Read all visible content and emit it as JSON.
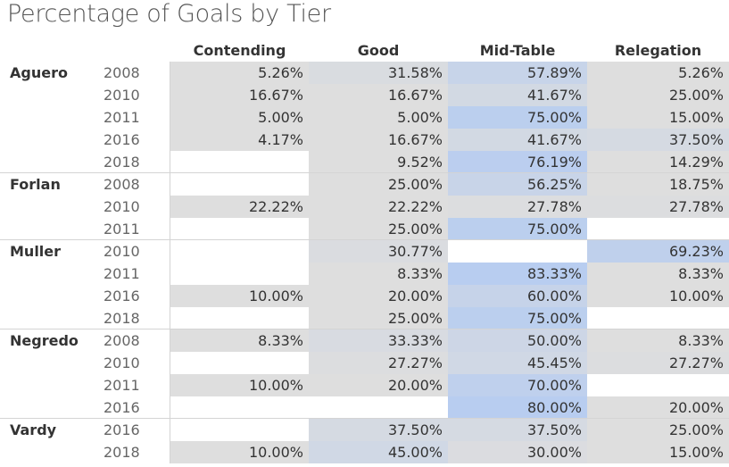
{
  "chart_data": {
    "type": "table",
    "title": "Percentage of Goals by Tier",
    "columns": [
      "Contending",
      "Good",
      "Mid-Table",
      "Relegation"
    ],
    "groups": [
      {
        "player": "Aguero",
        "rows": [
          {
            "year": "2008",
            "values": [
              "5.26%",
              "31.58%",
              "57.89%",
              "5.26%"
            ]
          },
          {
            "year": "2010",
            "values": [
              "16.67%",
              "16.67%",
              "41.67%",
              "25.00%"
            ]
          },
          {
            "year": "2011",
            "values": [
              "5.00%",
              "5.00%",
              "75.00%",
              "15.00%"
            ]
          },
          {
            "year": "2016",
            "values": [
              "4.17%",
              "16.67%",
              "41.67%",
              "37.50%"
            ]
          },
          {
            "year": "2018",
            "values": [
              "",
              "9.52%",
              "76.19%",
              "14.29%"
            ]
          }
        ]
      },
      {
        "player": "Forlan",
        "rows": [
          {
            "year": "2008",
            "values": [
              "",
              "25.00%",
              "56.25%",
              "18.75%"
            ]
          },
          {
            "year": "2010",
            "values": [
              "22.22%",
              "22.22%",
              "27.78%",
              "27.78%"
            ]
          },
          {
            "year": "2011",
            "values": [
              "",
              "25.00%",
              "75.00%",
              ""
            ]
          }
        ]
      },
      {
        "player": "Muller",
        "rows": [
          {
            "year": "2010",
            "values": [
              "",
              "30.77%",
              "",
              "69.23%"
            ]
          },
          {
            "year": "2011",
            "values": [
              "",
              "8.33%",
              "83.33%",
              "8.33%"
            ]
          },
          {
            "year": "2016",
            "values": [
              "10.00%",
              "20.00%",
              "60.00%",
              "10.00%"
            ]
          },
          {
            "year": "2018",
            "values": [
              "",
              "25.00%",
              "75.00%",
              ""
            ]
          }
        ]
      },
      {
        "player": "Negredo",
        "rows": [
          {
            "year": "2008",
            "values": [
              "8.33%",
              "33.33%",
              "50.00%",
              "8.33%"
            ]
          },
          {
            "year": "2010",
            "values": [
              "",
              "27.27%",
              "45.45%",
              "27.27%"
            ]
          },
          {
            "year": "2011",
            "values": [
              "10.00%",
              "20.00%",
              "70.00%",
              ""
            ]
          },
          {
            "year": "2016",
            "values": [
              "",
              "",
              "80.00%",
              "20.00%"
            ]
          }
        ]
      },
      {
        "player": "Vardy",
        "rows": [
          {
            "year": "2016",
            "values": [
              "",
              "37.50%",
              "37.50%",
              "25.00%"
            ]
          },
          {
            "year": "2018",
            "values": [
              "10.00%",
              "45.00%",
              "30.00%",
              "15.00%"
            ]
          }
        ]
      }
    ],
    "color_scale": {
      "low": "#dedede",
      "high": "#b8cdf0"
    }
  }
}
